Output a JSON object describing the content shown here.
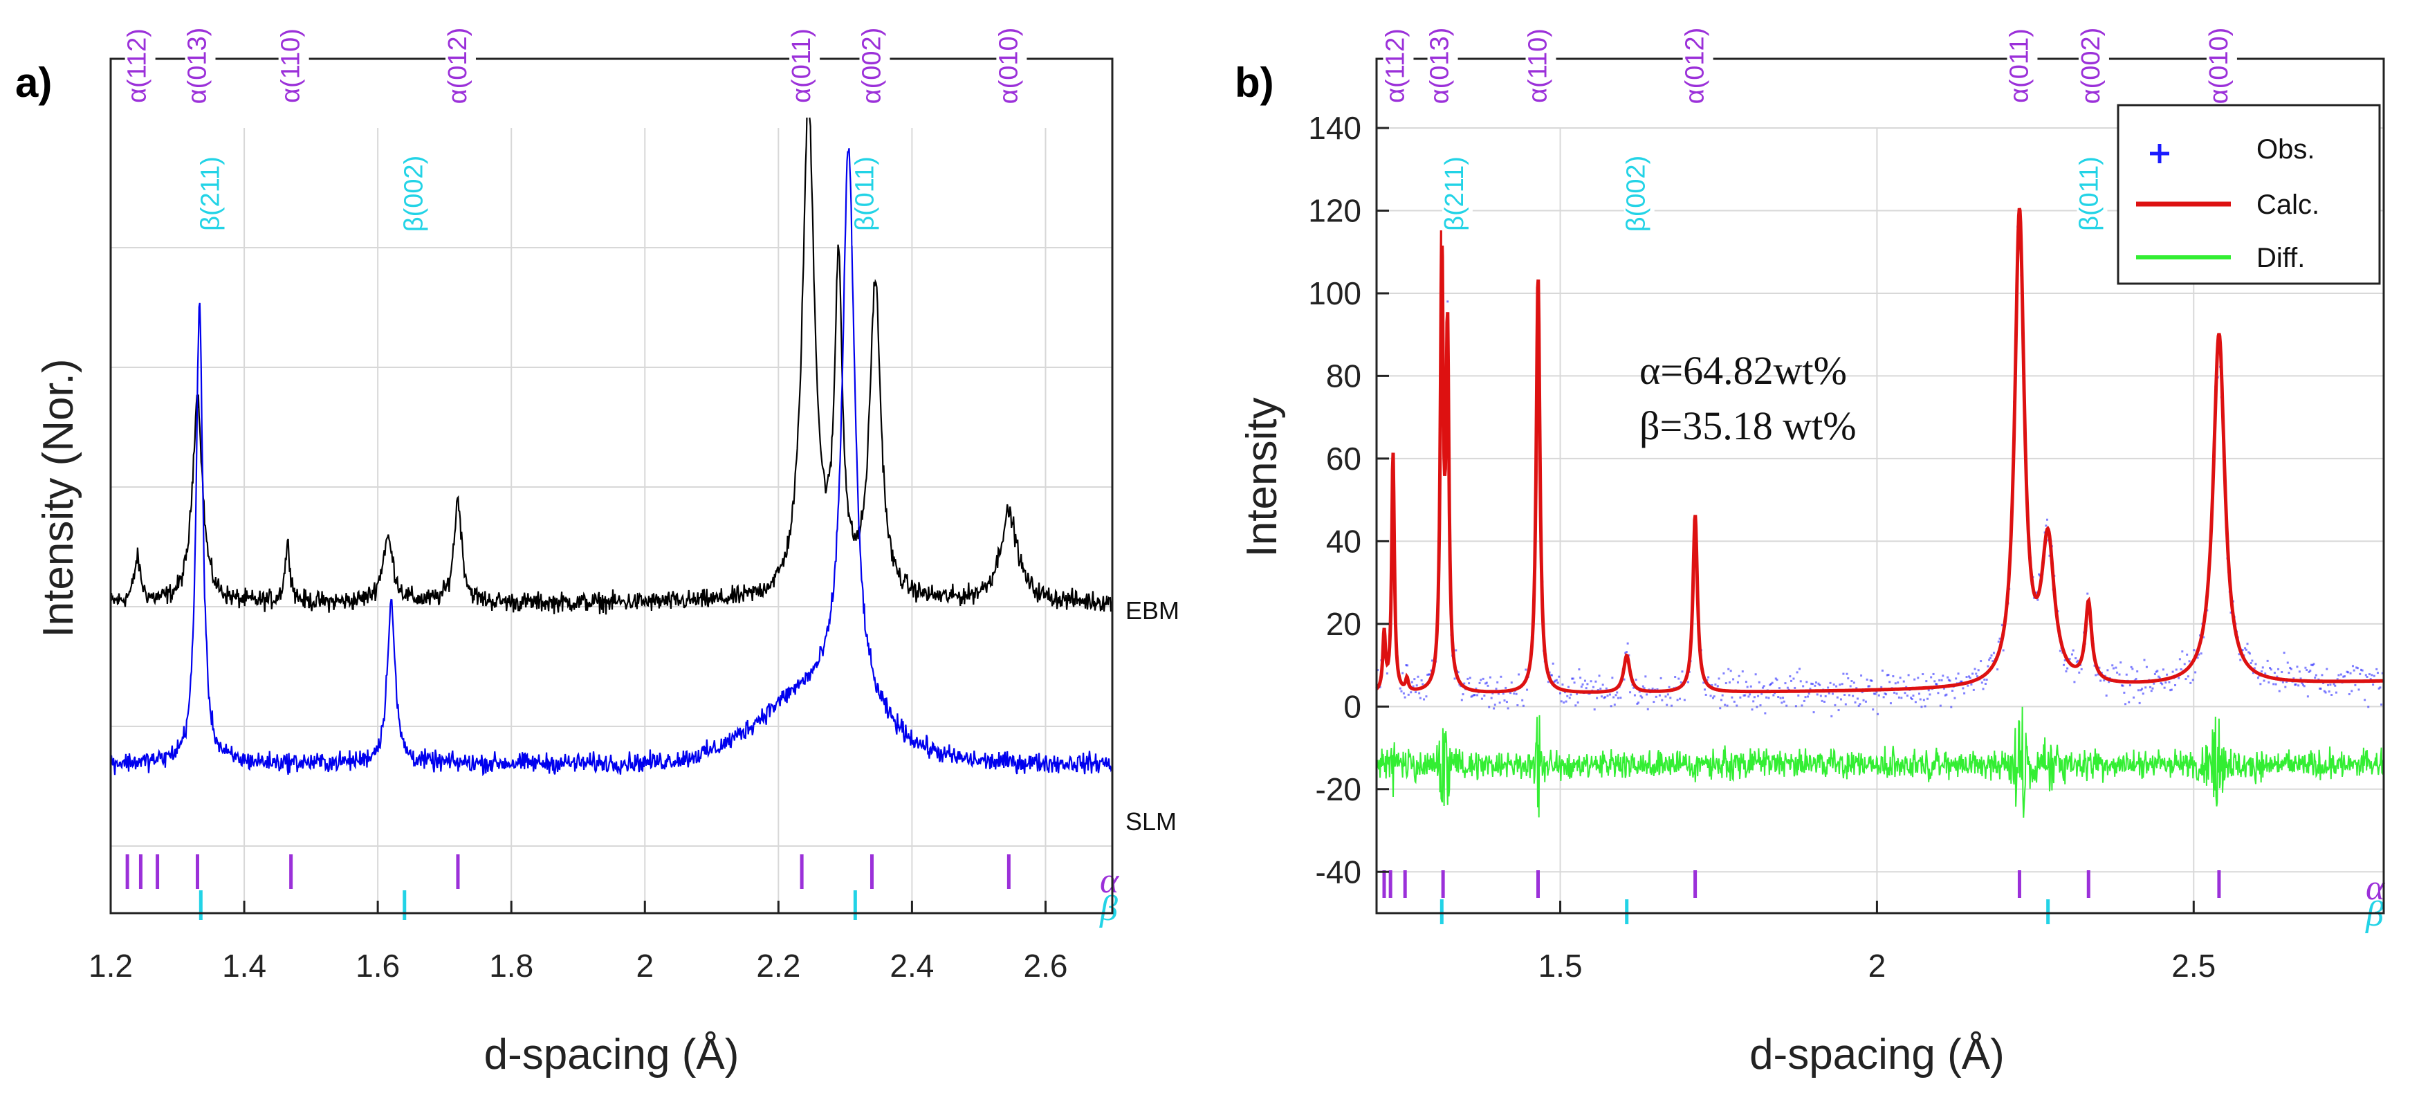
{
  "colors": {
    "alpha": "#9b30d9",
    "beta": "#22d3e6",
    "ebm": "#000000",
    "slm": "#0000ee",
    "obs": "#1a1aff",
    "calc": "#dd1111",
    "diff": "#33ee33"
  },
  "chart_data": [
    {
      "type": "line",
      "panel": "a)",
      "xlabel": "d-spacing (Å)",
      "ylabel": "Intensity (Nor.)",
      "xlim": [
        1.2,
        2.7
      ],
      "ylim": [
        -2.0,
        10.0
      ],
      "xticks": [
        1.2,
        1.4,
        1.6,
        1.8,
        2.0,
        2.2,
        2.4,
        2.6
      ],
      "xtick_labels": [
        "1.2",
        "1.4",
        "1.6",
        "1.8",
        "2",
        "2.2",
        "2.4",
        "2.6"
      ],
      "ytick_labels": [],
      "grid": true,
      "series": [
        {
          "name": "EBM",
          "baseline": 2.35,
          "noise": 0.12,
          "peaks": [
            {
              "x": 1.24,
              "h": 0.6,
              "w": 0.006
            },
            {
              "x": 1.33,
              "h": 2.9,
              "w": 0.009
            },
            {
              "x": 1.465,
              "h": 0.8,
              "w": 0.005
            },
            {
              "x": 1.615,
              "h": 0.9,
              "w": 0.01
            },
            {
              "x": 1.72,
              "h": 1.45,
              "w": 0.007
            },
            {
              "x": 2.245,
              "h": 6.9,
              "w": 0.011
            },
            {
              "x": 2.29,
              "h": 4.5,
              "w": 0.007
            },
            {
              "x": 2.345,
              "h": 4.4,
              "w": 0.01
            },
            {
              "x": 2.545,
              "h": 1.25,
              "w": 0.016
            }
          ]
        },
        {
          "name": "SLM",
          "baseline": 0.1,
          "noise": 0.12,
          "peaks": [
            {
              "x": 1.333,
              "h": 6.5,
              "w": 0.006
            },
            {
              "x": 1.62,
              "h": 2.3,
              "w": 0.007
            },
            {
              "x": 2.305,
              "h": 7.8,
              "w": 0.011
            }
          ],
          "broad_hump": {
            "x": 2.26,
            "h": 1.0,
            "w": 0.12
          }
        }
      ],
      "phase_ticks": {
        "alpha": [
          1.225,
          1.245,
          1.27,
          1.33,
          1.47,
          1.72,
          2.235,
          2.34,
          2.545
        ],
        "beta": [
          1.335,
          1.64,
          2.315
        ]
      },
      "peak_labels_alpha": [
        {
          "x": 1.24,
          "text": "α(112)"
        },
        {
          "x": 1.33,
          "text": "α(013)"
        },
        {
          "x": 1.47,
          "text": "α(110)"
        },
        {
          "x": 1.72,
          "text": "α(012)"
        },
        {
          "x": 2.235,
          "text": "α(011)"
        },
        {
          "x": 2.34,
          "text": "α(002)"
        },
        {
          "x": 2.545,
          "text": "α(010)"
        }
      ],
      "peak_labels_beta": [
        {
          "x": 1.335,
          "text": "β(211)"
        },
        {
          "x": 1.64,
          "text": "β(002)"
        },
        {
          "x": 2.315,
          "text": "β(011)"
        }
      ],
      "series_tags": [
        "EBM",
        "SLM"
      ],
      "phase_tags": [
        "α",
        "β"
      ]
    },
    {
      "type": "line",
      "panel": "b)",
      "xlabel": "d-spacing (Å)",
      "ylabel": "Intensity",
      "xlim": [
        1.21,
        2.8
      ],
      "ylim": [
        -50,
        140
      ],
      "xticks": [
        1.5,
        2.0,
        2.5
      ],
      "xtick_labels": [
        "1.5",
        "2",
        "2.5"
      ],
      "yticks": [
        -40,
        -20,
        0,
        20,
        40,
        60,
        80,
        100,
        120,
        140
      ],
      "ytick_labels": [
        "-40",
        "-20",
        "0",
        "20",
        "40",
        "60",
        "80",
        "100",
        "120",
        "140"
      ],
      "grid": true,
      "annotation": [
        "α=64.82wt%",
        "β=35.18 wt%"
      ],
      "legend": {
        "placement": "top-right",
        "entries": [
          {
            "name": "Obs.",
            "style": "marker"
          },
          {
            "name": "Calc.",
            "style": "line"
          },
          {
            "name": "Diff.",
            "style": "line"
          }
        ]
      },
      "calc": {
        "baseline_left": 3,
        "baseline_right": 6,
        "peaks": [
          {
            "x": 1.222,
            "h": 14,
            "w": 0.0025
          },
          {
            "x": 1.236,
            "h": 58,
            "w": 0.0025
          },
          {
            "x": 1.258,
            "h": 3,
            "w": 0.0025
          },
          {
            "x": 1.313,
            "h": 105,
            "w": 0.0028
          },
          {
            "x": 1.322,
            "h": 84,
            "w": 0.0028
          },
          {
            "x": 1.465,
            "h": 101,
            "w": 0.0035
          },
          {
            "x": 1.605,
            "h": 9,
            "w": 0.006
          },
          {
            "x": 1.713,
            "h": 43,
            "w": 0.0042
          },
          {
            "x": 2.225,
            "h": 114,
            "w": 0.009
          },
          {
            "x": 2.27,
            "h": 34,
            "w": 0.012
          },
          {
            "x": 2.334,
            "h": 19,
            "w": 0.006
          },
          {
            "x": 2.54,
            "h": 85,
            "w": 0.011
          }
        ]
      },
      "obs_noise": 4,
      "diff_offset": -14,
      "diff_noise": 3,
      "phase_ticks": {
        "alpha": [
          1.222,
          1.232,
          1.255,
          1.315,
          1.465,
          1.713,
          2.225,
          2.334,
          2.54
        ],
        "beta": [
          1.313,
          1.605,
          2.27
        ]
      },
      "peak_labels_alpha": [
        {
          "x": 1.24,
          "text": "α(112)"
        },
        {
          "x": 1.31,
          "text": "α(013)"
        },
        {
          "x": 1.465,
          "text": "α(110)"
        },
        {
          "x": 1.713,
          "text": "α(012)"
        },
        {
          "x": 2.225,
          "text": "α(011)"
        },
        {
          "x": 2.338,
          "text": "α(002)"
        },
        {
          "x": 2.54,
          "text": "α(010)"
        }
      ],
      "peak_labels_beta": [
        {
          "x": 1.318,
          "text": "β(211)"
        },
        {
          "x": 1.605,
          "text": "β(002)"
        },
        {
          "x": 2.32,
          "text": "β(011)"
        }
      ],
      "phase_tags": [
        "α",
        "β"
      ]
    }
  ]
}
